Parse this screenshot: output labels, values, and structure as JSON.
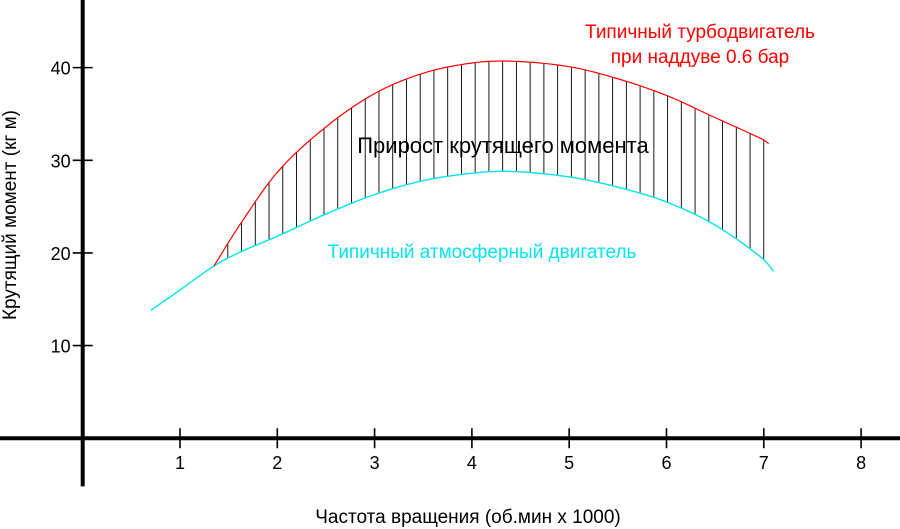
{
  "chart_data": {
    "type": "area",
    "xlabel": "Частота вращения (об.мин х 1000)",
    "ylabel": "Крутящий момент (кг м)",
    "x_ticks": [
      1,
      2,
      3,
      4,
      5,
      6,
      7,
      8
    ],
    "y_ticks": [
      10,
      20,
      30,
      40
    ],
    "xlim": [
      -0.85,
      8.4
    ],
    "ylim": [
      -9.8,
      47.3
    ],
    "grid": false,
    "series": [
      {
        "name": "Типичный турбодвигатель при наддуве 0.6 бар",
        "color": "#ff0000",
        "x": [
          1.35,
          1.6,
          2.0,
          2.5,
          3.0,
          3.5,
          4.0,
          4.4,
          5.0,
          5.5,
          6.0,
          6.5,
          7.0,
          7.05
        ],
        "y": [
          18.6,
          22.8,
          28.7,
          33.6,
          37.2,
          39.4,
          40.5,
          40.7,
          40.1,
          38.8,
          37.0,
          34.6,
          32.2,
          31.8
        ]
      },
      {
        "name": "Типичный атмосферный двигатель",
        "color": "#00e5ee",
        "x": [
          0.7,
          1.0,
          1.35,
          1.6,
          2.0,
          2.5,
          3.0,
          3.5,
          4.0,
          4.4,
          5.0,
          5.5,
          6.0,
          6.5,
          7.0,
          7.1
        ],
        "y": [
          13.8,
          16.0,
          18.6,
          20.0,
          21.8,
          24.2,
          26.3,
          27.8,
          28.6,
          28.8,
          28.2,
          27.1,
          25.5,
          23.0,
          19.3,
          18.0
        ]
      }
    ],
    "annotations": {
      "area_label": "Прирост крутящего момента",
      "turbo_label_line1": "Типичный турбодвигатель",
      "turbo_label_line2": "при наддуве 0.6 бар",
      "atmo_label": "Типичный атмосферный двигатель"
    },
    "hatch": {
      "from_x": 1.35,
      "to_x": 7.0,
      "count": 41
    }
  }
}
